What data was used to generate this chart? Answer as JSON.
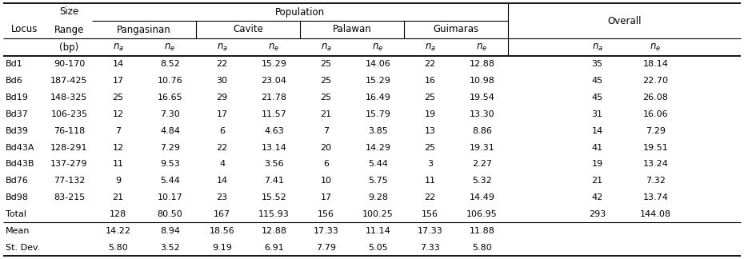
{
  "populations": [
    "Pangasinan",
    "Cavite",
    "Palawan",
    "Guimaras"
  ],
  "overall_label": "Overall",
  "loci": [
    "Bd1",
    "Bd6",
    "Bd19",
    "Bd37",
    "Bd39",
    "Bd43A",
    "Bd43B",
    "Bd76",
    "Bd98",
    "Total",
    "Mean",
    "St. Dev."
  ],
  "size_range": [
    "90-170",
    "187-425",
    "148-325",
    "106-235",
    "76-118",
    "128-291",
    "137-279",
    "77-132",
    "83-215",
    "",
    "",
    ""
  ],
  "data": [
    [
      "14",
      "8.52",
      "22",
      "15.29",
      "25",
      "14.06",
      "22",
      "12.88",
      "35",
      "18.14"
    ],
    [
      "17",
      "10.76",
      "30",
      "23.04",
      "25",
      "15.29",
      "16",
      "10.98",
      "45",
      "22.70"
    ],
    [
      "25",
      "16.65",
      "29",
      "21.78",
      "25",
      "16.49",
      "25",
      "19.54",
      "45",
      "26.08"
    ],
    [
      "12",
      "7.30",
      "17",
      "11.57",
      "21",
      "15.79",
      "19",
      "13.30",
      "31",
      "16.06"
    ],
    [
      "7",
      "4.84",
      "6",
      "4.63",
      "7",
      "3.85",
      "13",
      "8.86",
      "14",
      "7.29"
    ],
    [
      "12",
      "7.29",
      "22",
      "13.14",
      "20",
      "14.29",
      "25",
      "19.31",
      "41",
      "19.51"
    ],
    [
      "11",
      "9.53",
      "4",
      "3.56",
      "6",
      "5.44",
      "3",
      "2.27",
      "19",
      "13.24"
    ],
    [
      "9",
      "5.44",
      "14",
      "7.41",
      "10",
      "5.75",
      "11",
      "5.32",
      "21",
      "7.32"
    ],
    [
      "21",
      "10.17",
      "23",
      "15.52",
      "17",
      "9.28",
      "22",
      "14.49",
      "42",
      "13.74"
    ],
    [
      "128",
      "80.50",
      "167",
      "115.93",
      "156",
      "100.25",
      "156",
      "106.95",
      "293",
      "144.08"
    ],
    [
      "14.22",
      "8.94",
      "18.56",
      "12.88",
      "17.33",
      "11.14",
      "17.33",
      "11.88",
      "",
      ""
    ],
    [
      "5.80",
      "3.52",
      "9.19",
      "6.91",
      "7.79",
      "5.05",
      "7.33",
      "5.80",
      "",
      ""
    ]
  ],
  "bg_color": "#ffffff",
  "line_color": "#000000",
  "text_color": "#000000",
  "font_size": 8.0,
  "header_font_size": 8.5
}
